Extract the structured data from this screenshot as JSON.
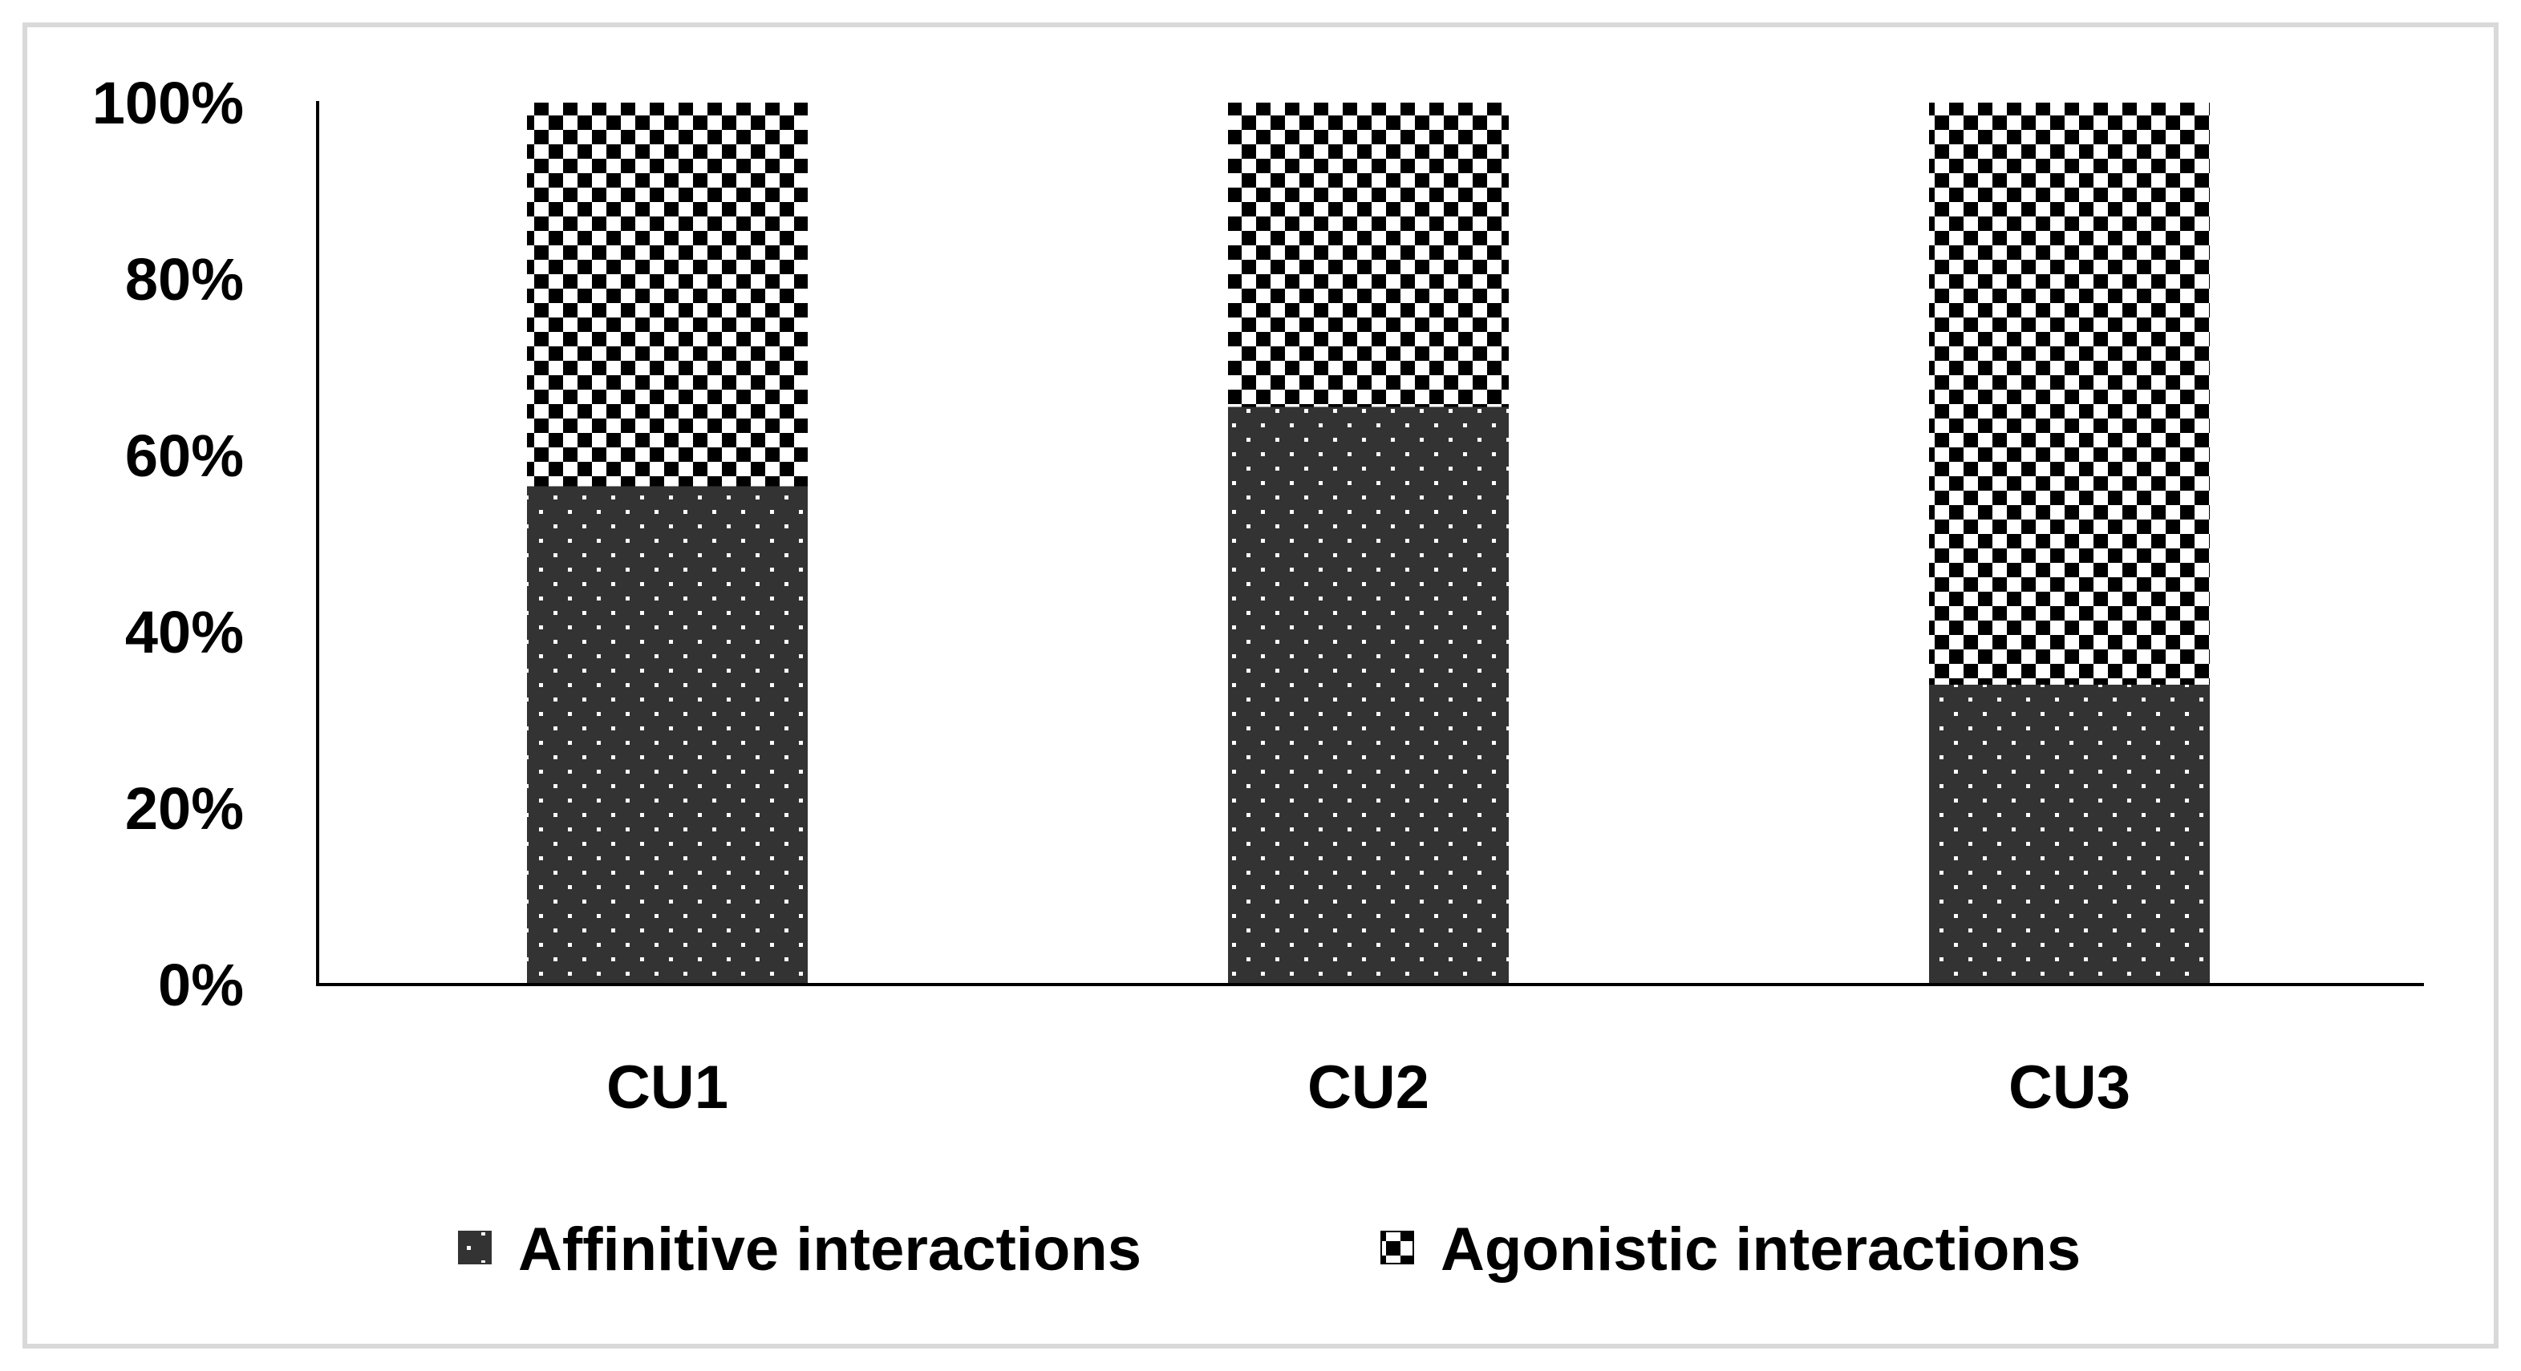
{
  "chart_data": {
    "type": "bar",
    "stacked": true,
    "categories": [
      "CU1",
      "CU2",
      "CU3"
    ],
    "series": [
      {
        "name": "Affinitive interactions",
        "values": [
          56.5,
          65.5,
          34
        ],
        "color": "#333333",
        "pattern": "dots"
      },
      {
        "name": "Agonistic interactions",
        "values": [
          43.5,
          34.5,
          66
        ],
        "color": "#000000",
        "pattern": "checkerboard"
      }
    ],
    "yticks": [
      "0%",
      "20%",
      "40%",
      "60%",
      "80%",
      "100%"
    ],
    "ylim": [
      0,
      100
    ],
    "legend_position": "bottom",
    "grid": false
  }
}
